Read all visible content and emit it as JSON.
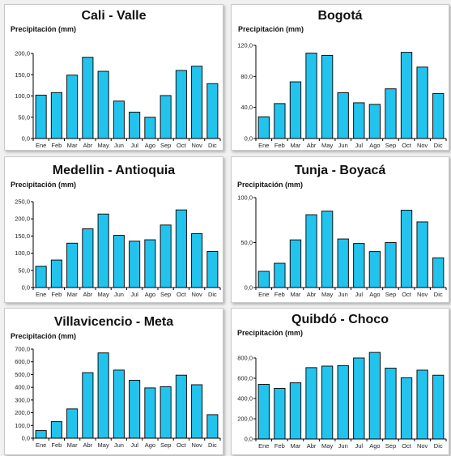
{
  "chart_data": [
    {
      "type": "bar",
      "title": "Cali - Valle",
      "ylabel": "Precipitación (mm)",
      "categories": [
        "Ene",
        "Feb",
        "Mar",
        "Abr",
        "May",
        "Jun",
        "Jul",
        "Ago",
        "Sep",
        "Oct",
        "Nov",
        "Dic"
      ],
      "values": [
        102,
        108,
        149,
        191,
        158,
        88,
        62,
        50,
        101,
        160,
        170,
        129
      ],
      "ylim": [
        0,
        200
      ],
      "yticks": [
        0,
        50,
        100,
        150,
        200
      ],
      "ytick_labels": [
        "0,0",
        "50,0",
        "100,0",
        "150,0",
        "200,0"
      ]
    },
    {
      "type": "bar",
      "title": "Bogotá",
      "ylabel": "Precipitación (mm)",
      "categories": [
        "Ene",
        "Feb",
        "Mar",
        "Abr",
        "May",
        "Jun",
        "Jul",
        "Ago",
        "Sep",
        "Oct",
        "Nov",
        "Dic"
      ],
      "values": [
        28,
        45,
        73,
        110,
        107,
        59,
        46,
        44,
        64,
        111,
        92,
        58
      ],
      "ylim": [
        0,
        120
      ],
      "yticks": [
        0,
        40,
        80,
        120
      ],
      "ytick_labels": [
        "0,0",
        "40,0",
        "80,0",
        "120,0"
      ]
    },
    {
      "type": "bar",
      "title": "Medellin - Antioquia",
      "ylabel": "Precipitación (mm)",
      "categories": [
        "Ene",
        "Feb",
        "Mar",
        "Abr",
        "May",
        "Jun",
        "Jul",
        "Ago",
        "Sep",
        "Oct",
        "Nov",
        "Dic"
      ],
      "values": [
        62,
        80,
        129,
        171,
        214,
        152,
        135,
        139,
        182,
        226,
        157,
        105
      ],
      "ylim": [
        0,
        250
      ],
      "yticks": [
        0,
        50,
        100,
        150,
        200,
        250
      ],
      "ytick_labels": [
        "0,0",
        "50,0",
        "100,0",
        "150,0",
        "200,0",
        "250,0"
      ]
    },
    {
      "type": "bar",
      "title": "Tunja - Boyacá",
      "ylabel": "Precipitación (mm)",
      "categories": [
        "Ene",
        "Feb",
        "Mar",
        "Abr",
        "May",
        "Jun",
        "Jul",
        "Ago",
        "Sep",
        "Oct",
        "Nov",
        "Dic"
      ],
      "values": [
        18,
        27,
        53,
        81,
        85,
        54,
        49,
        40,
        50,
        86,
        73,
        33
      ],
      "ylim": [
        0,
        100
      ],
      "yticks": [
        0,
        50,
        100
      ],
      "ytick_labels": [
        "0,0",
        "50,0",
        "100,0"
      ]
    },
    {
      "type": "bar",
      "title": "Villavicencio - Meta",
      "ylabel": "Precipitación (mm)",
      "categories": [
        "Ene",
        "Feb",
        "Mar",
        "Abr",
        "May",
        "Jun",
        "Jul",
        "Ago",
        "Sep",
        "Oct",
        "Nov",
        "Dic"
      ],
      "values": [
        60,
        130,
        230,
        515,
        670,
        535,
        455,
        395,
        405,
        495,
        420,
        185
      ],
      "ylim": [
        0,
        700
      ],
      "yticks": [
        0,
        100,
        200,
        300,
        400,
        500,
        600,
        700
      ],
      "ytick_labels": [
        "0,0",
        "100,0",
        "200,0",
        "300,0",
        "400,0",
        "500,0",
        "600,0",
        "700,0"
      ]
    },
    {
      "type": "bar",
      "title": "Quibdó - Choco",
      "ylabel": "Precipitación (mm)",
      "categories": [
        "Ene",
        "Feb",
        "Mar",
        "Abr",
        "May",
        "Jun",
        "Jul",
        "Ago",
        "Sep",
        "Oct",
        "Nov",
        "Dic"
      ],
      "values": [
        540,
        500,
        555,
        705,
        720,
        725,
        800,
        855,
        700,
        605,
        680,
        630
      ],
      "ylim": [
        0,
        800
      ],
      "yticks": [
        0,
        200,
        400,
        600,
        800
      ],
      "ytick_labels": [
        "0,0",
        "200,0",
        "400,0",
        "600,0",
        "800,0"
      ]
    }
  ],
  "colors": {
    "bar_fill": "#22c4ee",
    "bar_stroke": "#111111"
  }
}
